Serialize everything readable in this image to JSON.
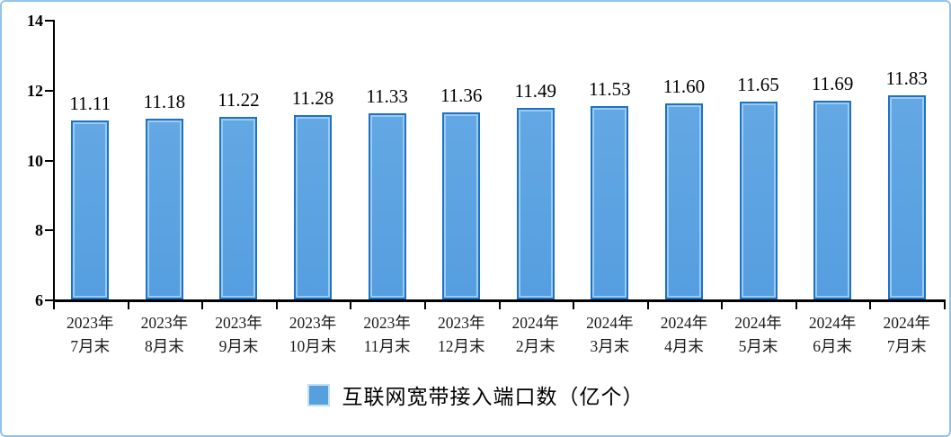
{
  "chart_data": {
    "type": "bar",
    "title": "",
    "xlabel": "",
    "ylabel": "",
    "categories": [
      {
        "line1": "2023年",
        "line2": "7月末"
      },
      {
        "line1": "2023年",
        "line2": "8月末"
      },
      {
        "line1": "2023年",
        "line2": "9月末"
      },
      {
        "line1": "2023年",
        "line2": "10月末"
      },
      {
        "line1": "2023年",
        "line2": "11月末"
      },
      {
        "line1": "2023年",
        "line2": "12月末"
      },
      {
        "line1": "2024年",
        "line2": "2月末"
      },
      {
        "line1": "2024年",
        "line2": "3月末"
      },
      {
        "line1": "2024年",
        "line2": "4月末"
      },
      {
        "line1": "2024年",
        "line2": "5月末"
      },
      {
        "line1": "2024年",
        "line2": "6月末"
      },
      {
        "line1": "2024年",
        "line2": "7月末"
      }
    ],
    "values": [
      11.11,
      11.18,
      11.22,
      11.28,
      11.33,
      11.36,
      11.49,
      11.53,
      11.6,
      11.65,
      11.69,
      11.83
    ],
    "value_labels": [
      "11.11",
      "11.18",
      "11.22",
      "11.28",
      "11.33",
      "11.36",
      "11.49",
      "11.53",
      "11.60",
      "11.65",
      "11.69",
      "11.83"
    ],
    "ylim": [
      6,
      14
    ],
    "yticks": [
      6,
      8,
      10,
      12,
      14
    ],
    "ytick_labels": [
      "6",
      "8",
      "10",
      "12",
      "14"
    ],
    "grid": false,
    "legend_position": "bottom-center",
    "legend": {
      "label": "互联网宽带接入端口数（亿个）",
      "swatch_color": "#57A0DE"
    },
    "colors": {
      "bar_fill": "#58A1E1",
      "bar_border": "#1C72C4",
      "bar_inner_highlight": "#9CCAF0",
      "axis": "#000000",
      "outer_border": "#93C3ED",
      "text": "#000000"
    }
  }
}
